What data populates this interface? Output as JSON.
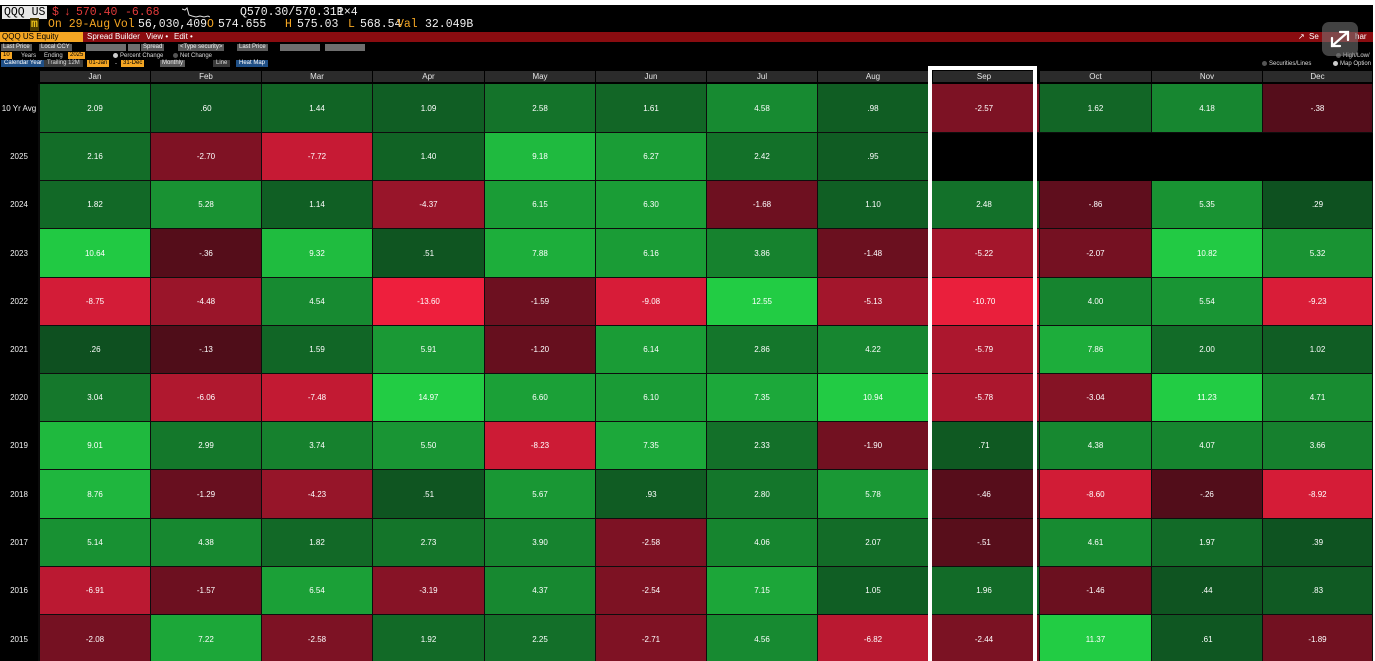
{
  "quote": {
    "ticker": "QQQ US",
    "currency": "$",
    "direction_arrow": "↓",
    "last_price": "570.40",
    "change": "-6.68",
    "bid_ask": "Q570.30/570.31P",
    "size": "1×4",
    "date": "On 29-Aug",
    "volume_label": "Vol",
    "volume": "56,030,409",
    "open_label": "O",
    "open": "574.655",
    "high_label": "H",
    "high": "575.03",
    "low_label": "L",
    "low": "568.54",
    "value_label": "Val",
    "value": "32.049B"
  },
  "toolbar": {
    "security": "QQQ US Equity",
    "menus": [
      "Spread Builder",
      "View •",
      "Edit •"
    ],
    "right_label_1": "Se",
    "right_label_2": "har"
  },
  "options": {
    "row1": [
      "Last Price",
      "Local CCY",
      "Spread",
      "<Type security>",
      "Last Price"
    ],
    "row2": {
      "num": "10",
      "years": "Years",
      "ending": "Ending",
      "ending_year": "2025",
      "percent_change": "Percent Change",
      "net_change": "Net Change",
      "right": "High/Low/"
    },
    "row3": {
      "calendar": "Calendar Year",
      "trailing": "Trailing 12M",
      "from": "01-Jan",
      "to": "31-Dec",
      "frequency": "Monthly",
      "line": "Line",
      "heatmap": "Heat Map",
      "securities": "Securities/Lines",
      "map_options": "Map Option"
    }
  },
  "heatmap": {
    "months": [
      "Jan",
      "Feb",
      "Mar",
      "Apr",
      "May",
      "Jun",
      "Jul",
      "Aug",
      "Sep",
      "Oct",
      "Nov",
      "Dec"
    ],
    "highlighted_month": "Sep",
    "rows": [
      {
        "label": "10 Yr Avg",
        "values": [
          "2.09",
          ".60",
          "1.44",
          "1.09",
          "2.58",
          "1.61",
          "4.58",
          ".98",
          "-2.57",
          "1.62",
          "4.18",
          "-.38"
        ]
      },
      {
        "label": "2025",
        "values": [
          "2.16",
          "-2.70",
          "-7.72",
          "1.40",
          "9.18",
          "6.27",
          "2.42",
          ".95",
          "",
          "",
          "",
          ""
        ]
      },
      {
        "label": "2024",
        "values": [
          "1.82",
          "5.28",
          "1.14",
          "-4.37",
          "6.15",
          "6.30",
          "-1.68",
          "1.10",
          "2.48",
          "-.86",
          "5.35",
          ".29"
        ]
      },
      {
        "label": "2023",
        "values": [
          "10.64",
          "-.36",
          "9.32",
          ".51",
          "7.88",
          "6.16",
          "3.86",
          "-1.48",
          "-5.22",
          "-2.07",
          "10.82",
          "5.32"
        ]
      },
      {
        "label": "2022",
        "values": [
          "-8.75",
          "-4.48",
          "4.54",
          "-13.60",
          "-1.59",
          "-9.08",
          "12.55",
          "-5.13",
          "-10.70",
          "4.00",
          "5.54",
          "-9.23"
        ]
      },
      {
        "label": "2021",
        "values": [
          ".26",
          "-.13",
          "1.59",
          "5.91",
          "-1.20",
          "6.14",
          "2.86",
          "4.22",
          "-5.79",
          "7.86",
          "2.00",
          "1.02"
        ]
      },
      {
        "label": "2020",
        "values": [
          "3.04",
          "-6.06",
          "-7.48",
          "14.97",
          "6.60",
          "6.10",
          "7.35",
          "10.94",
          "-5.78",
          "-3.04",
          "11.23",
          "4.71"
        ]
      },
      {
        "label": "2019",
        "values": [
          "9.01",
          "2.99",
          "3.74",
          "5.50",
          "-8.23",
          "7.35",
          "2.33",
          "-1.90",
          ".71",
          "4.38",
          "4.07",
          "3.66"
        ]
      },
      {
        "label": "2018",
        "values": [
          "8.76",
          "-1.29",
          "-4.23",
          ".51",
          "5.67",
          ".93",
          "2.80",
          "5.78",
          "-.46",
          "-8.60",
          "-.26",
          "-8.92"
        ]
      },
      {
        "label": "2017",
        "values": [
          "5.14",
          "4.38",
          "1.82",
          "2.73",
          "3.90",
          "-2.58",
          "4.06",
          "2.07",
          "-.51",
          "4.61",
          "1.97",
          ".39"
        ]
      },
      {
        "label": "2016",
        "values": [
          "-6.91",
          "-1.57",
          "6.54",
          "-3.19",
          "4.37",
          "-2.54",
          "7.15",
          "1.05",
          "1.96",
          "-1.46",
          ".44",
          ".83"
        ]
      },
      {
        "label": "2015",
        "values": [
          "-2.08",
          "7.22",
          "-2.58",
          "1.92",
          "2.25",
          "-2.71",
          "4.56",
          "-6.82",
          "-2.44",
          "11.37",
          ".61",
          "-1.89"
        ]
      }
    ]
  },
  "colors": {
    "pos_low": "#0d4a1e",
    "pos_high": "#22cc44",
    "neg_low": "#4a0c18",
    "neg_high": "#ee1f3d",
    "accent": "#f5a623"
  }
}
